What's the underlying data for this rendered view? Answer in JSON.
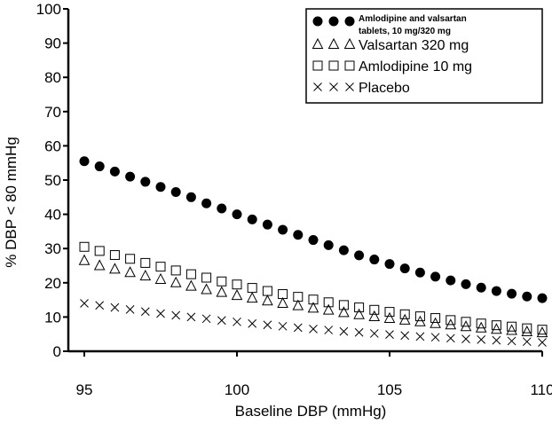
{
  "chart_data": {
    "type": "scatter",
    "title": "",
    "xlabel": "Baseline DBP (mmHg)",
    "ylabel": "% DBP < 80 mmHg",
    "xlim": [
      95,
      110
    ],
    "ylim": [
      0,
      100
    ],
    "xticks": [
      95,
      100,
      105,
      110
    ],
    "yticks": [
      0,
      10,
      20,
      30,
      40,
      50,
      60,
      70,
      80,
      90,
      100
    ],
    "grid": false,
    "legend_position": "top-right",
    "x": [
      95,
      95.5,
      96,
      96.5,
      97,
      97.5,
      98,
      98.5,
      99,
      99.5,
      100,
      100.5,
      101,
      101.5,
      102,
      102.5,
      103,
      103.5,
      104,
      104.5,
      105,
      105.5,
      106,
      106.5,
      107,
      107.5,
      108,
      108.5,
      109,
      109.5,
      110
    ],
    "series": [
      {
        "name": "Amlodipine and valsartan tablets, 10 mg/320 mg",
        "name_line1": "Amlodipine and valsartan",
        "name_line2": "tablets, 10 mg/320 mg",
        "marker": "filled-circle",
        "color": "#000000",
        "values": [
          55.5,
          54,
          52.5,
          51,
          49.5,
          48,
          46.5,
          45,
          43.2,
          41.7,
          40,
          38.5,
          37,
          35.5,
          34,
          32.5,
          31,
          29.5,
          28,
          26.8,
          25.5,
          24.2,
          23,
          21.8,
          20.7,
          19.6,
          18.6,
          17.6,
          16.8,
          16,
          15.5
        ]
      },
      {
        "name": "Valsartan 320 mg",
        "marker": "open-triangle",
        "color": "#000000",
        "values": [
          26.5,
          25,
          24,
          23,
          22,
          21,
          20,
          19,
          18,
          17.2,
          16.3,
          15.5,
          14.7,
          14,
          13.3,
          12.6,
          12,
          11.3,
          10.7,
          10.1,
          9.6,
          9.1,
          8.6,
          8.1,
          7.7,
          7.2,
          6.8,
          6.4,
          6.1,
          5.7,
          5.4
        ]
      },
      {
        "name": "Amlodipine 10 mg",
        "marker": "open-square",
        "color": "#000000",
        "values": [
          30.5,
          29.3,
          28.1,
          27,
          25.8,
          24.7,
          23.6,
          22.5,
          21.5,
          20.4,
          19.5,
          18.5,
          17.6,
          16.7,
          15.9,
          15.1,
          14.3,
          13.5,
          12.8,
          12.1,
          11.5,
          10.8,
          10.2,
          9.7,
          9.1,
          8.6,
          8.1,
          7.6,
          7.2,
          6.7,
          6.3
        ]
      },
      {
        "name": "Placebo",
        "marker": "x-cross",
        "color": "#000000",
        "values": [
          14,
          13.4,
          12.8,
          12.2,
          11.6,
          11,
          10.5,
          10,
          9.5,
          9,
          8.6,
          8.1,
          7.7,
          7.3,
          6.9,
          6.5,
          6.2,
          5.8,
          5.5,
          5.2,
          4.9,
          4.6,
          4.3,
          4.1,
          3.8,
          3.6,
          3.4,
          3.2,
          3,
          2.8,
          2.6
        ]
      }
    ]
  }
}
